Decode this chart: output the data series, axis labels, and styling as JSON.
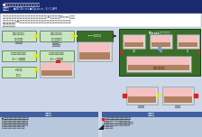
{
  "title_main": "●測定機ソリューション（２）",
  "title_sub1": "測定機",
  "title_sub2": "●NCBrain",
  "title_sub3": "●Space-E/CAM",
  "header_bg": "#1a2a6e",
  "body_bg": "#ccd8ea",
  "green_dark": "#3a6e28",
  "green_light": "#6ab04c",
  "green_box_fill": "#c8e6c0",
  "white": "#ffffff",
  "yellow_arrow": "#e8e800",
  "blue_arrow": "#4472c4",
  "red_mark": "#dd2222",
  "pink_fill": "#f4b8b8",
  "gray_box": "#d0d0d0",
  "brown_bar": "#b08060",
  "bottom_blue": "#4060a0",
  "bottom_bg": "#b8c8dc",
  "black": "#111111",
  "figsize": [
    2.24,
    1.52
  ],
  "dpi": 100
}
